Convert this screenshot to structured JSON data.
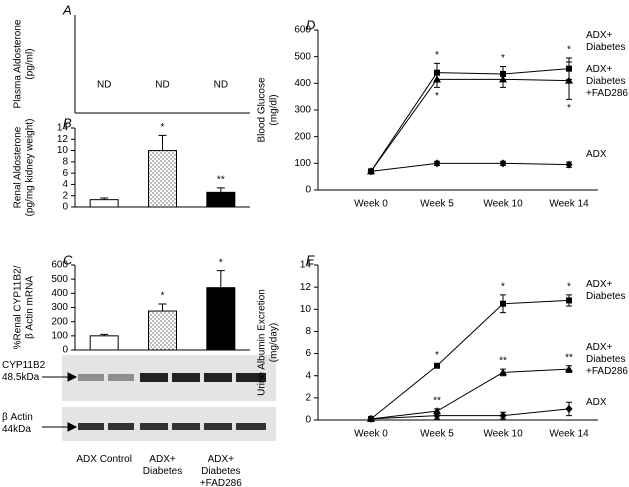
{
  "chart_data": [
    {
      "panel": "A",
      "type": "bar",
      "ylabel": [
        "Plasma Aldosterone",
        "(pg/ml)"
      ],
      "annotations": [
        "ND",
        "ND",
        "ND"
      ]
    },
    {
      "panel": "B",
      "type": "bar",
      "ylabel": [
        "Renal Aldosterone",
        "(pg/mg kidney weight)"
      ],
      "values": [
        1.3,
        10,
        2.6
      ],
      "errors": [
        0.3,
        2.7,
        0.8
      ],
      "annotations": [
        null,
        "*",
        "**"
      ],
      "bar_styles": [
        "open",
        "dotted",
        "solid"
      ],
      "ylim": [
        0,
        14
      ],
      "yticks": [
        0,
        2,
        4,
        6,
        8,
        10,
        12,
        14
      ]
    },
    {
      "panel": "C",
      "type": "bar",
      "ylabel": [
        "%Renal CYP11B2/",
        "β Actin mRNA"
      ],
      "categories": [
        "ADX Control",
        "ADX+ Diabetes",
        "ADX+ Diabetes +FAD286"
      ],
      "values": [
        100,
        275,
        440
      ],
      "errors": [
        10,
        50,
        120
      ],
      "annotations": [
        null,
        "*",
        "*"
      ],
      "bar_styles": [
        "open",
        "dotted",
        "solid"
      ],
      "ylim": [
        0,
        600
      ],
      "yticks": [
        0,
        100,
        200,
        300,
        400,
        500,
        600
      ],
      "blots": [
        {
          "label": "CYP11B2",
          "size": "48.5kDa"
        },
        {
          "label": "β Actin",
          "size": "44kDa"
        }
      ]
    },
    {
      "panel": "D",
      "type": "line",
      "ylabel": [
        "Blood Glucose",
        "(mg/dl)"
      ],
      "categories": [
        "Week 0",
        "Week 5",
        "Week 10",
        "Week 14"
      ],
      "ylim": [
        0,
        600
      ],
      "yticks": [
        0,
        100,
        200,
        300,
        400,
        500,
        600
      ],
      "series": [
        {
          "name": "ADX+ Diabetes",
          "marker": "square",
          "values": [
            70,
            440,
            435,
            455
          ],
          "errors": [
            5,
            35,
            28,
            40
          ],
          "annotations": [
            null,
            "*",
            "*",
            "*"
          ],
          "annotation_side": "above"
        },
        {
          "name": "ADX+ Diabetes +FAD286",
          "marker": "triangle",
          "values": [
            70,
            415,
            415,
            410
          ],
          "errors": [
            5,
            30,
            30,
            70
          ],
          "annotations": [
            null,
            "*",
            null,
            "*"
          ],
          "annotation_side": "below"
        },
        {
          "name": "ADX",
          "marker": "diamond",
          "values": [
            70,
            100,
            100,
            95
          ],
          "errors": [
            5,
            8,
            8,
            10
          ],
          "annotations": [
            null,
            null,
            null,
            null
          ],
          "annotation_side": "above"
        }
      ]
    },
    {
      "panel": "E",
      "type": "line",
      "ylabel": [
        "Urine Albumin Excretion",
        "(mg/day)"
      ],
      "categories": [
        "Week 0",
        "Week 5",
        "Week 10",
        "Week 14"
      ],
      "ylim": [
        0,
        14
      ],
      "yticks": [
        0,
        2,
        4,
        6,
        8,
        10,
        12,
        14
      ],
      "series": [
        {
          "name": "ADX+ Diabetes",
          "marker": "square",
          "values": [
            0.1,
            4.9,
            10.5,
            10.8
          ],
          "errors": [
            0.1,
            0.2,
            0.8,
            0.5
          ],
          "annotations": [
            null,
            "*",
            "*",
            "*"
          ],
          "annotation_side": "above"
        },
        {
          "name": "ADX+ Diabetes +FAD286",
          "marker": "triangle",
          "values": [
            0.1,
            0.8,
            4.3,
            4.6
          ],
          "errors": [
            0.1,
            0.2,
            0.3,
            0.3
          ],
          "annotations": [
            null,
            "**",
            "**",
            "**"
          ],
          "annotation_side": "above"
        },
        {
          "name": "ADX",
          "marker": "diamond",
          "values": [
            0.1,
            0.4,
            0.4,
            1.0
          ],
          "errors": [
            0.1,
            0.3,
            0.3,
            0.6
          ],
          "annotations": [
            null,
            null,
            null,
            null
          ],
          "annotation_side": "above"
        }
      ]
    }
  ]
}
